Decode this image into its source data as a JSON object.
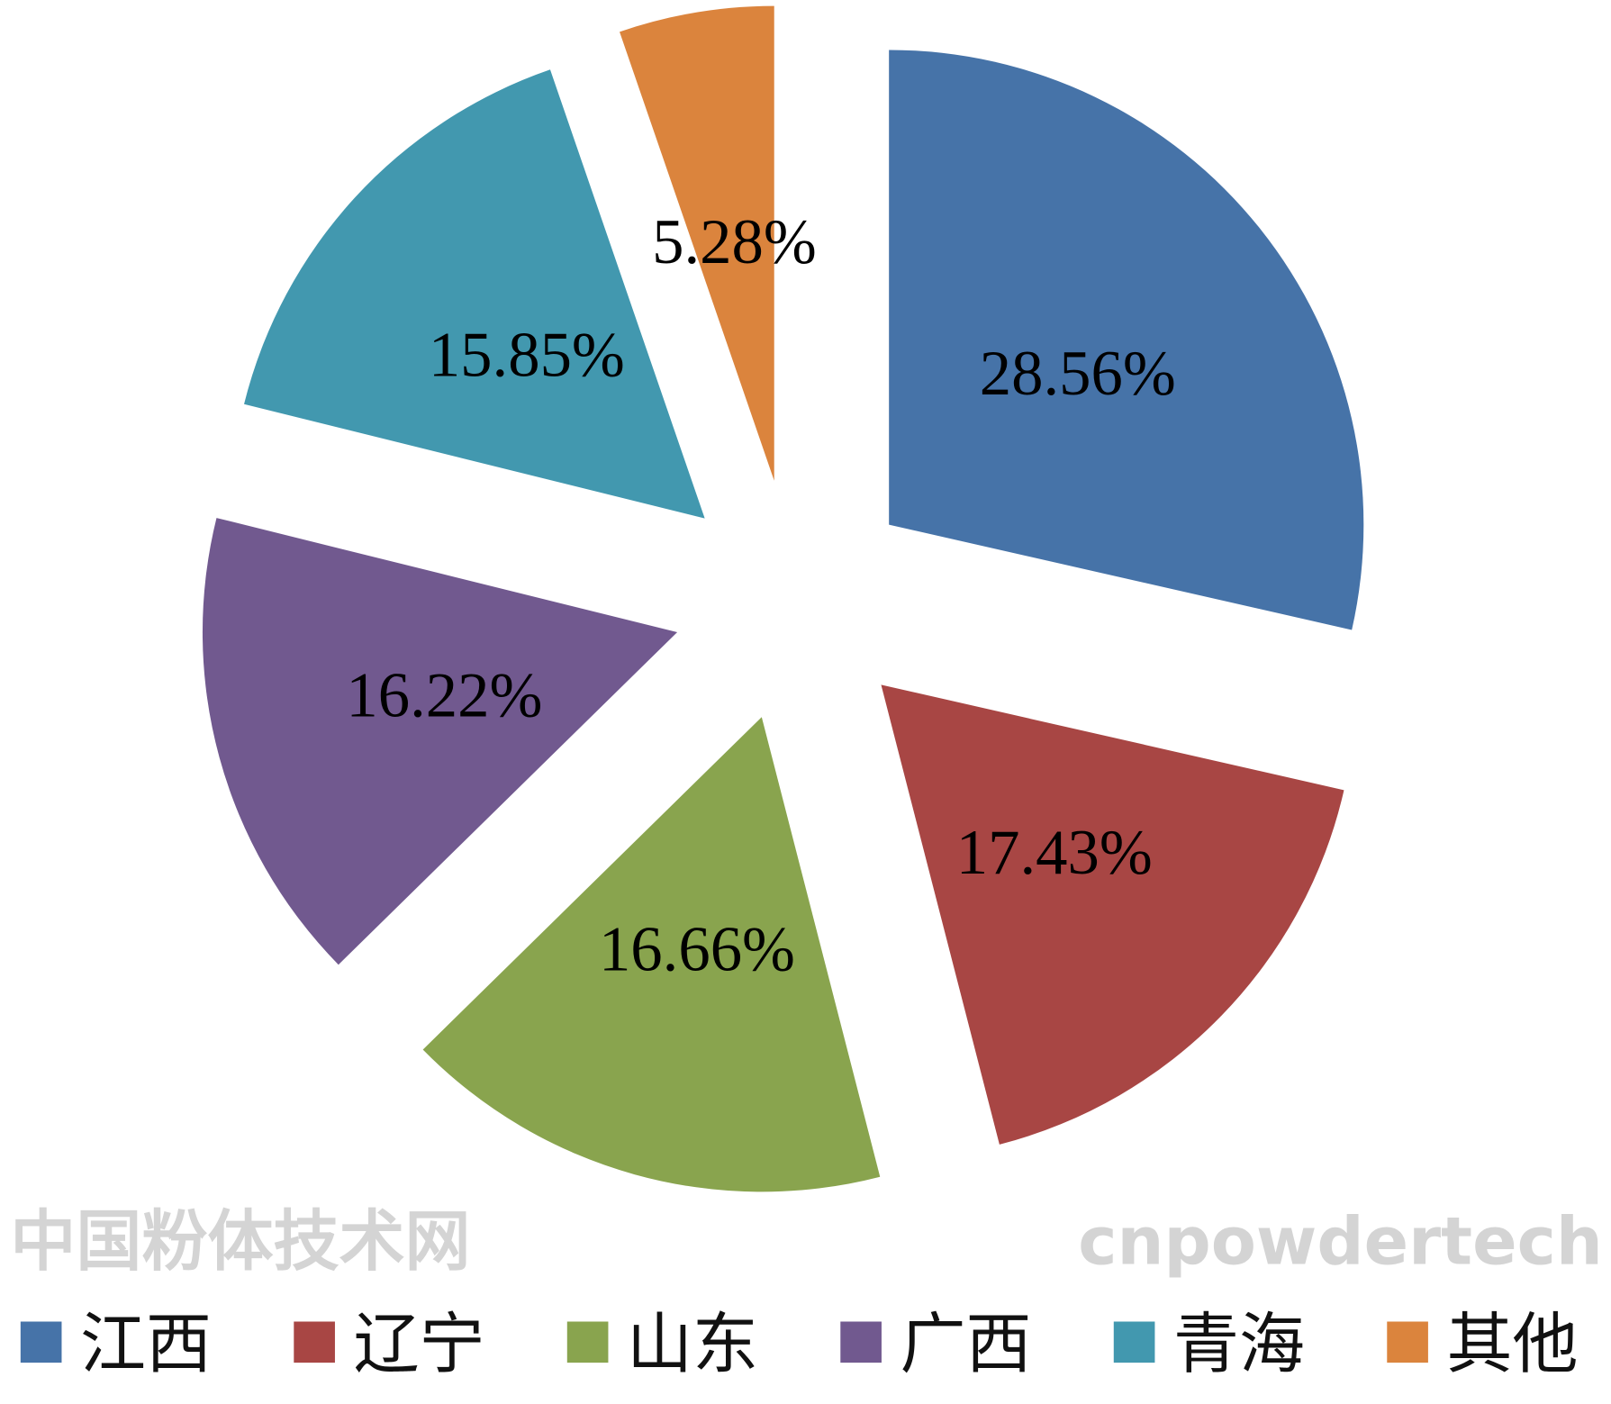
{
  "chart_data": {
    "type": "pie",
    "exploded": true,
    "start": "12 o'clock",
    "direction": "clockwise",
    "legend_placement": "bottom",
    "categories": [
      "江西",
      "辽宁",
      "山东",
      "广西",
      "青海",
      "其他"
    ],
    "values": [
      28.56,
      17.43,
      16.66,
      16.22,
      15.85,
      5.28
    ],
    "labels": [
      "28.56%",
      "17.43%",
      "16.66%",
      "16.22%",
      "15.85%",
      "5.28%"
    ],
    "colors": [
      "#4673a8",
      "#a84644",
      "#89a44e",
      "#71598f",
      "#4298af",
      "#db843d"
    ]
  },
  "watermark": [
    "中国粉体技术网",
    "cnpowdertech"
  ]
}
